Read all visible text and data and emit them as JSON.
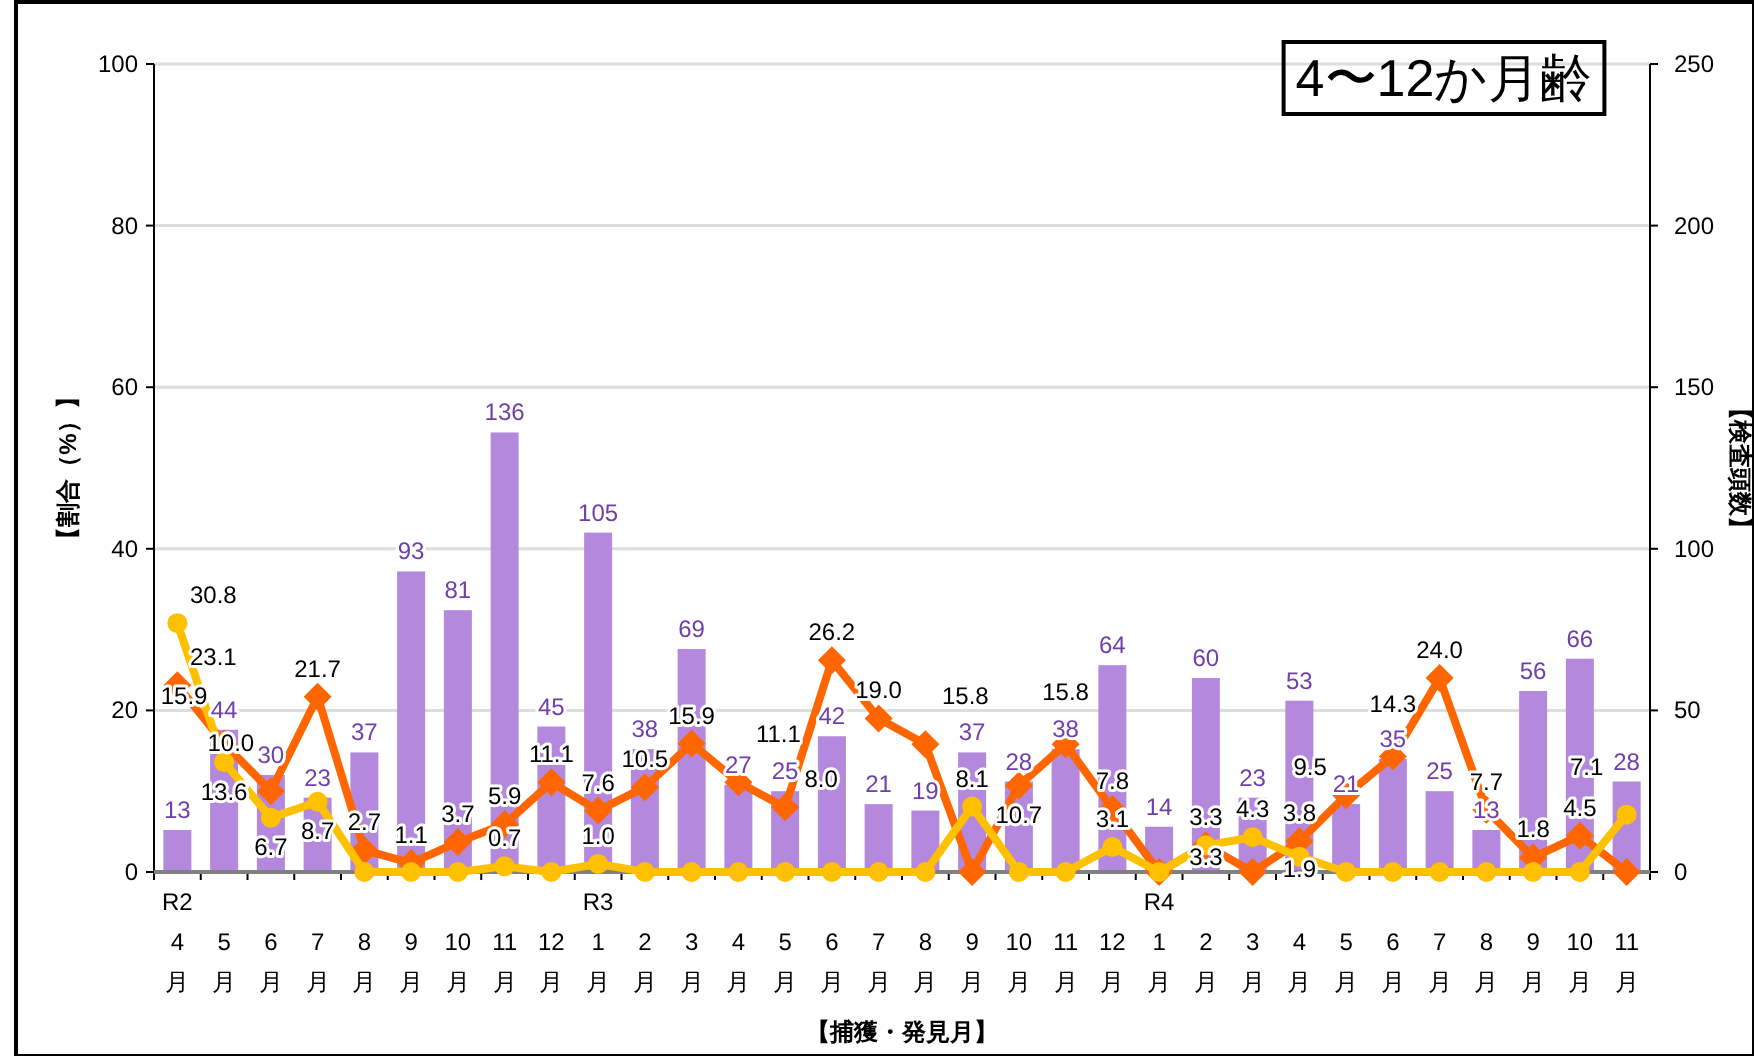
{
  "chart_data": {
    "type": "bar",
    "title": "4〜12か月齢",
    "xlabel": "【捕獲・発見月】",
    "ylabel": "【割合（%）】",
    "y2label": "【検査頭数】",
    "categories": [
      "R2\n4\n月",
      "5\n月",
      "6\n月",
      "7\n月",
      "8\n月",
      "9\n月",
      "10\n月",
      "11\n月",
      "12\n月",
      "R3\n1\n月",
      "2\n月",
      "3\n月",
      "4\n月",
      "5\n月",
      "6\n月",
      "7\n月",
      "8\n月",
      "9\n月",
      "10\n月",
      "11\n月",
      "12\n月",
      "R4\n1\n月",
      "2\n月",
      "3\n月",
      "4\n月",
      "5\n月",
      "6\n月",
      "7\n月",
      "8\n月",
      "9\n月",
      "10\n月",
      "11\n月"
    ],
    "series": [
      {
        "axis": "y2",
        "color": "#b388dd",
        "values": [
          13,
          44,
          30,
          23,
          37,
          93,
          81,
          136,
          45,
          105,
          38,
          69,
          27,
          25,
          42,
          21,
          19,
          37,
          28,
          38,
          64,
          14,
          60,
          23,
          53,
          21,
          35,
          25,
          13,
          56,
          66,
          28
        ],
        "value_labels": [
          "13",
          "44",
          "30",
          "23",
          "37",
          "93",
          "81",
          "136",
          "45",
          "105",
          "38",
          "69",
          "27",
          "25",
          "42",
          "21",
          "19",
          "37",
          "28",
          "38",
          "64",
          "14",
          "60",
          "23",
          "53",
          "21",
          "35",
          "25",
          "13",
          "56",
          "66",
          "28"
        ]
      },
      {
        "type": "line",
        "marker": "diamond",
        "color": "#ff6600",
        "values": [
          23.1,
          15.9,
          10.0,
          21.7,
          2.7,
          1.1,
          3.7,
          5.9,
          11.1,
          7.6,
          10.5,
          15.9,
          11.1,
          8.0,
          26.2,
          19.0,
          15.8,
          0,
          10.7,
          15.8,
          7.8,
          0,
          3.3,
          0,
          3.8,
          9.5,
          14.3,
          24.0,
          7.7,
          1.8,
          4.5,
          0
        ],
        "value_labels": [
          "23.1",
          "15.9",
          "10.0",
          "21.7",
          "2.7",
          "1.1",
          "3.7",
          "5.9",
          "11.1",
          "7.6",
          "10.5",
          "15.9",
          "11.1",
          "8.0",
          "26.2",
          "19.0",
          "15.8",
          null,
          "10.7",
          "15.8",
          "7.8",
          null,
          "3.3",
          null,
          "3.8",
          "9.5",
          "14.3",
          "24.0",
          "7.7",
          "1.8",
          "4.5",
          null
        ]
      },
      {
        "type": "line",
        "marker": "circle",
        "color": "#ffc000",
        "values": [
          30.8,
          13.6,
          6.7,
          8.7,
          0,
          0,
          0,
          0.7,
          0,
          1.0,
          0,
          0,
          0,
          0,
          0,
          0,
          0,
          8.1,
          0,
          0,
          3.1,
          0,
          3.3,
          4.3,
          1.9,
          0,
          0,
          0,
          0,
          0,
          0,
          7.1
        ],
        "value_labels": [
          "30.8",
          "13.6",
          "6.7",
          "8.7",
          null,
          null,
          null,
          "0.7",
          null,
          "1.0",
          null,
          null,
          null,
          null,
          null,
          null,
          null,
          "8.1",
          null,
          null,
          "3.1",
          null,
          "3.3",
          "4.3",
          "1.9",
          null,
          null,
          null,
          null,
          null,
          null,
          "7.1"
        ]
      }
    ],
    "ylim": [
      0,
      100
    ],
    "yticks": [
      0,
      20,
      40,
      60,
      80,
      100
    ],
    "y2lim": [
      0,
      250
    ],
    "y2ticks": [
      0,
      50,
      100,
      150,
      200,
      250
    ],
    "grid": "y"
  }
}
